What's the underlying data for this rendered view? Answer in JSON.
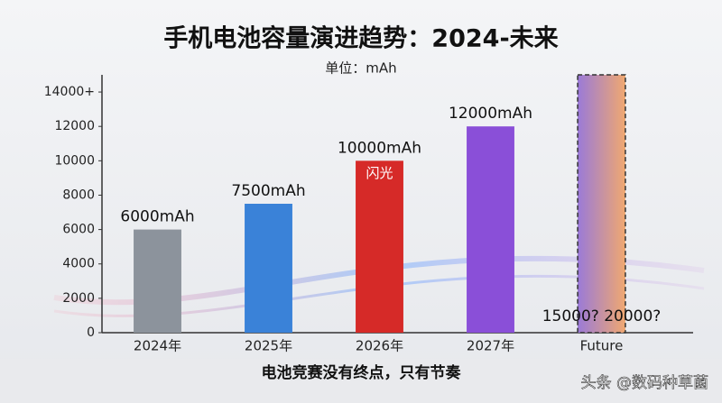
{
  "chart_data": {
    "type": "bar",
    "title": "手机电池容量演进趋势：2024-未来",
    "subtitle": "单位：mAh",
    "categories": [
      "2024年",
      "2025年",
      "2026年",
      "2027年",
      "Future"
    ],
    "values": [
      6000,
      7500,
      10000,
      12000,
      15000
    ],
    "value_labels": [
      "6000mAh",
      "7500mAh",
      "10000mAh",
      "12000mAh",
      "15000? 20000?"
    ],
    "colors": [
      "#8c939c",
      "#3a82d8",
      "#d62a28",
      "#8a4fd8",
      "#c98fa0"
    ],
    "ylim": [
      0,
      15000
    ],
    "yticks": [
      0,
      2000,
      4000,
      6000,
      8000,
      10000,
      12000,
      {
        "value": 14000,
        "label": "14000+"
      }
    ],
    "annotation": "闪光",
    "footer": "电池竞赛没有终点，只有节奏",
    "watermark": "头条 @数码种草菌"
  }
}
